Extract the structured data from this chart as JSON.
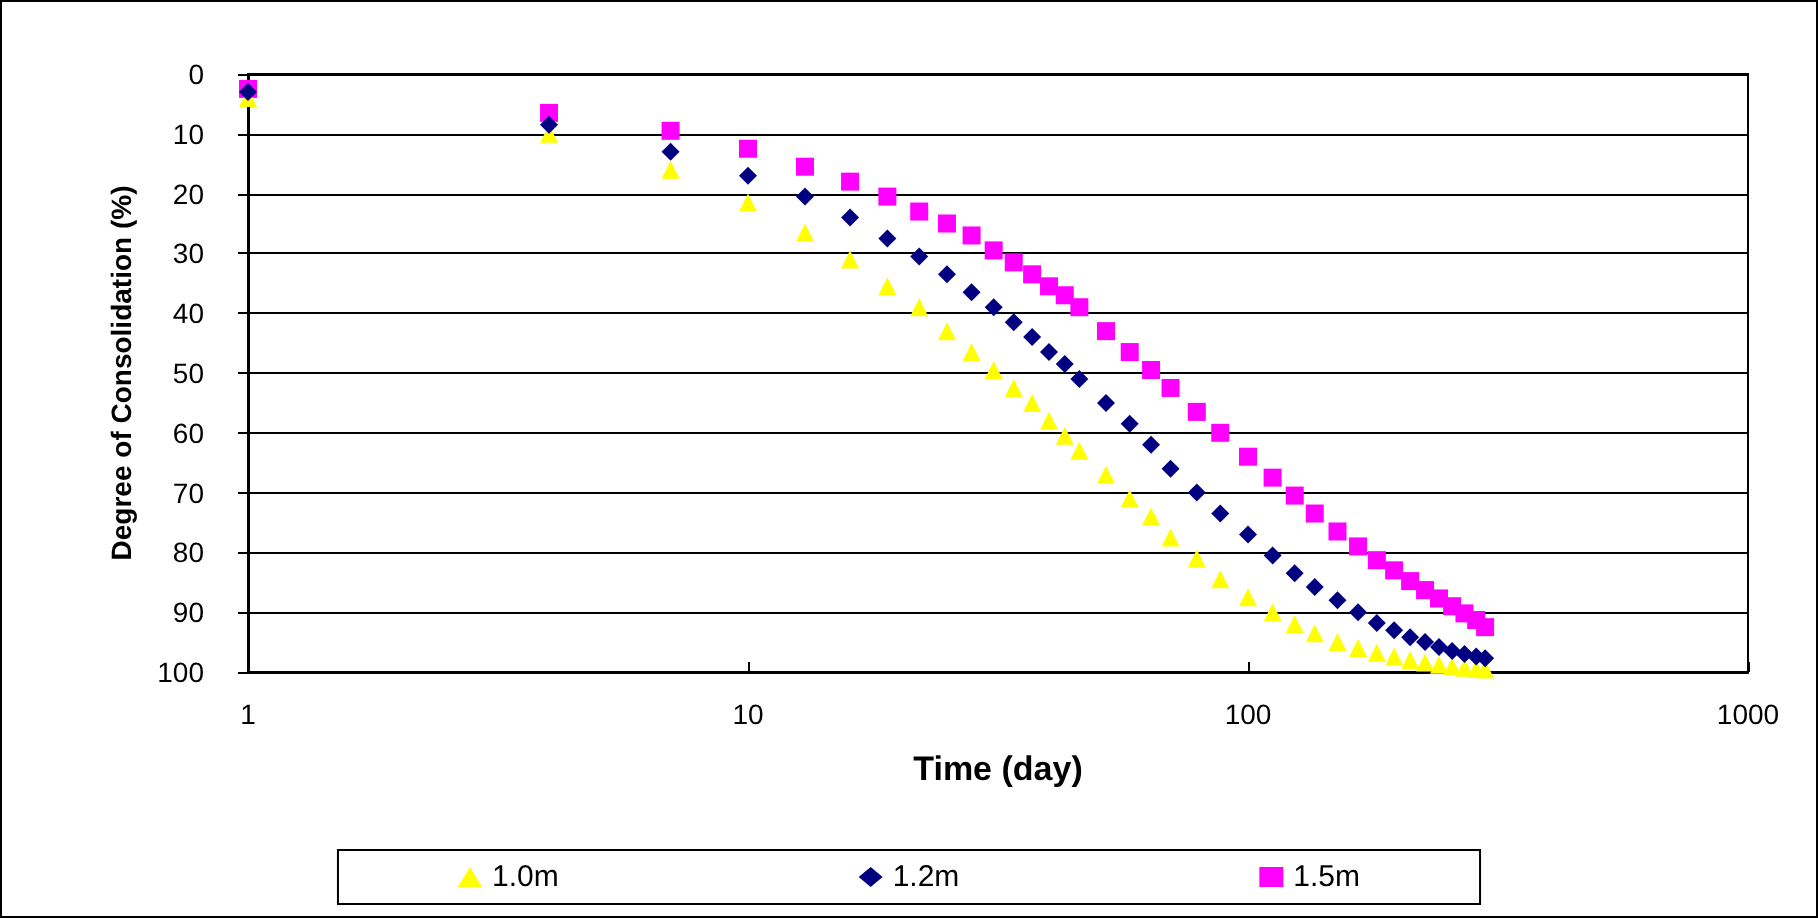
{
  "chart_data": {
    "type": "scatter",
    "xlabel": "Time (day)",
    "ylabel": "Degree of Consolidation (%)",
    "log": "x",
    "xlim": [
      1,
      1000
    ],
    "xticks": [
      1,
      10,
      100,
      1000
    ],
    "ylim": [
      100,
      0
    ],
    "yticks": [
      0,
      10,
      20,
      30,
      40,
      50,
      60,
      70,
      80,
      90,
      100
    ],
    "grid": "y",
    "legend": "bottom",
    "x": [
      1,
      4,
      7,
      10,
      13,
      16,
      19,
      22,
      25,
      28,
      31,
      34,
      37,
      40,
      43,
      46,
      52,
      58,
      64,
      70,
      79,
      88,
      100,
      112,
      124,
      136,
      151,
      166,
      181,
      196,
      211,
      226,
      241,
      256,
      271,
      286,
      298
    ],
    "series": [
      {
        "name": "1.0m",
        "color": "#ffff00",
        "marker": "triangle",
        "values": [
          4,
          10,
          16,
          21.5,
          26.5,
          31,
          35.5,
          39,
          43,
          46.5,
          49.5,
          52.5,
          55,
          58,
          60.5,
          63,
          67,
          71,
          74,
          77.5,
          81,
          84.5,
          87.5,
          90,
          92,
          93.5,
          95,
          96,
          96.8,
          97.4,
          98,
          98.4,
          98.8,
          99.1,
          99.3,
          99.5,
          99.6
        ]
      },
      {
        "name": "1.2m",
        "color": "#000080",
        "marker": "diamond",
        "values": [
          3,
          8.5,
          13,
          17,
          20.5,
          24,
          27.5,
          30.5,
          33.5,
          36.5,
          39,
          41.5,
          44,
          46.5,
          48.5,
          51,
          55,
          58.5,
          62,
          66,
          70,
          73.5,
          77,
          80.5,
          83.5,
          85.8,
          88,
          90,
          91.8,
          93,
          94.2,
          95,
          95.8,
          96.5,
          97,
          97.4,
          97.7
        ]
      },
      {
        "name": "1.5m",
        "color": "#ff00ff",
        "marker": "square",
        "values": [
          2.5,
          6.5,
          9.5,
          12.5,
          15.5,
          18,
          20.5,
          23,
          25,
          27,
          29.5,
          31.5,
          33.5,
          35.5,
          37,
          39,
          43,
          46.5,
          49.5,
          52.5,
          56.5,
          60,
          64,
          67.5,
          70.5,
          73.5,
          76.5,
          79,
          81.3,
          83,
          84.8,
          86.3,
          87.7,
          89,
          90.2,
          91.3,
          92.5
        ]
      }
    ]
  }
}
